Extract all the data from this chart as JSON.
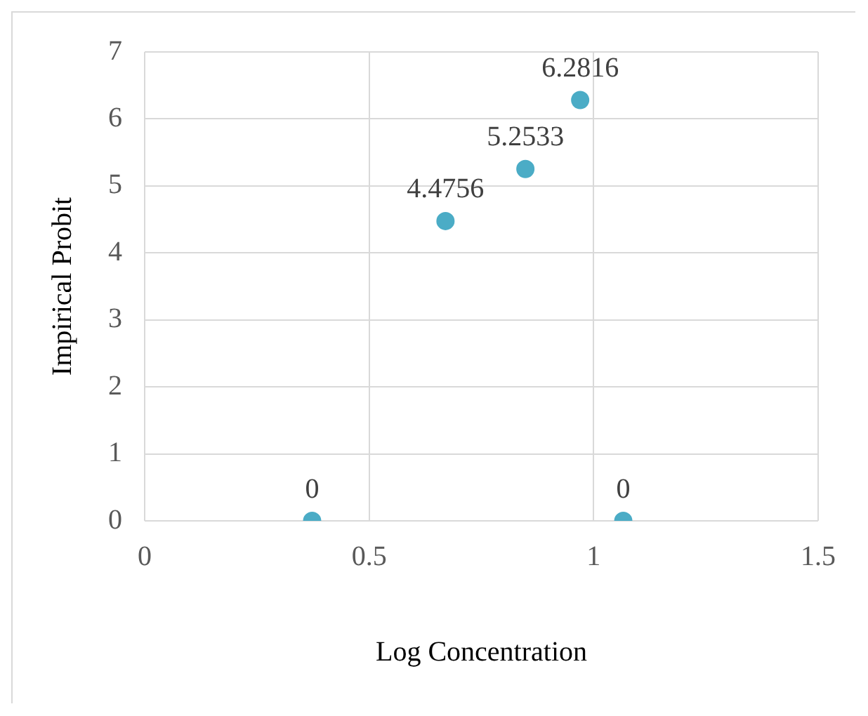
{
  "chart_data": {
    "type": "scatter",
    "xlabel": "Log Concentration",
    "ylabel": "Impirical Probit",
    "x": [
      0.373,
      0.67,
      0.848,
      0.97,
      1.066
    ],
    "series": [
      {
        "color": "#4bacc6",
        "values": [
          0,
          4.4756,
          5.2533,
          6.2816,
          0
        ]
      }
    ],
    "xlim": [
      0,
      1.5
    ],
    "xticks": [
      0,
      0.5,
      1,
      1.5
    ],
    "ylim": [
      0,
      7
    ],
    "yticks": [
      0,
      1,
      2,
      3,
      4,
      5,
      6,
      7
    ],
    "grid": true,
    "marker": "circle",
    "data_labels": true
  }
}
